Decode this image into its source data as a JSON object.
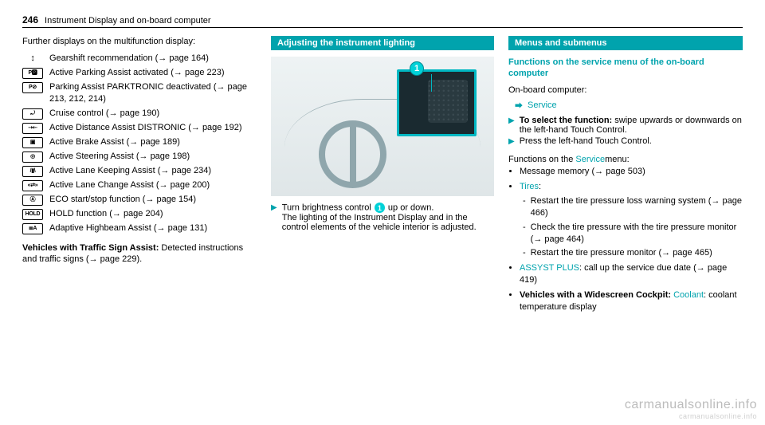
{
  "header": {
    "page_number": "246",
    "title": "Instrument Display and on-board computer"
  },
  "col1": {
    "intro": "Further displays on the multifunction display:",
    "items": [
      {
        "icon": "↕",
        "noborder": true,
        "text": "Gearshift recommendation (",
        "ref": "page 164",
        "tail": ")"
      },
      {
        "icon": "P🅿",
        "text": "Active Parking Assist activated (",
        "ref": "page 223",
        "tail": ")"
      },
      {
        "icon": "P⊘",
        "text": "Parking Assist PARKTRONIC deactivated (",
        "ref": "page 213, 212, 214",
        "tail": ")"
      },
      {
        "icon": "⤾",
        "text": "Cruise control (",
        "ref": "page 190",
        "tail": ")"
      },
      {
        "icon": "⇢⇠",
        "text": "Active Distance Assist DISTRONIC (",
        "ref": "page 192",
        "tail": ")"
      },
      {
        "icon": "▣",
        "text": "Active Brake Assist (",
        "ref": "page 189",
        "tail": ")"
      },
      {
        "icon": "◎",
        "text": "Active Steering Assist (",
        "ref": "page 198",
        "tail": ")"
      },
      {
        "icon": "/▮\\",
        "text": "Active Lane Keeping Assist (",
        "ref": "page 234",
        "tail": ")"
      },
      {
        "icon": "«⇄»",
        "text": "Active Lane Change Assist (",
        "ref": "page 200",
        "tail": ")"
      },
      {
        "icon": "Ⓐ",
        "text": "ECO start/stop function (",
        "ref": "page 154",
        "tail": ")"
      },
      {
        "icon": "HOLD",
        "text": "HOLD function (",
        "ref": "page 204",
        "tail": ")"
      },
      {
        "icon": "≣A",
        "text": "Adaptive Highbeam Assist (",
        "ref": "page 131",
        "tail": ")"
      }
    ],
    "footer_bold": "Vehicles with Traffic Sign Assist:",
    "footer_rest": " Detected instructions and traffic signs (",
    "footer_ref": "page 229",
    "footer_tail": ")."
  },
  "col2": {
    "band": "Adjusting the instrument lighting",
    "callout_num": "1",
    "step_line1a": "Turn brightness control ",
    "step_line1b": " up or down.",
    "step_line2": "The lighting of the Instrument Display and in the control elements of the vehicle interior is adjusted."
  },
  "col3": {
    "band": "Menus and submenus",
    "heading": "Functions on the service menu of the on-board computer",
    "obc_label": "On-board computer:",
    "crumb": "Service",
    "actions": [
      {
        "bold": "To select the function:",
        "rest": " swipe upwards or downwards on the left-hand Touch Control."
      },
      {
        "rest": "Press the left-hand Touch Control."
      }
    ],
    "funcs_label_a": "Functions on the ",
    "funcs_link": "Service",
    "funcs_label_b": "menu:",
    "bullets": [
      {
        "text": "Message memory (",
        "ref": "page 503",
        "tail": ")"
      },
      {
        "link": "Tires",
        "tail": ":",
        "sub": [
          {
            "text": "Restart the tire pressure loss warning system (",
            "ref": "page 466",
            "tail": ")"
          },
          {
            "text": "Check the tire pressure with the tire pressure monitor (",
            "ref": "page 464",
            "tail": ")"
          },
          {
            "text": "Restart the tire pressure monitor (",
            "ref": "page 465",
            "tail": ")"
          }
        ]
      },
      {
        "link": "ASSYST PLUS",
        "text": ": call up the service due date (",
        "ref": "page 419",
        "tail": ")"
      },
      {
        "bold": "Vehicles with a Widescreen Cockpit:",
        "link2": "Coolant",
        "text2": ": coolant temperature display"
      }
    ]
  },
  "watermark": {
    "big": "carmanualsonline.info",
    "small": "carmanualsonline.info"
  }
}
